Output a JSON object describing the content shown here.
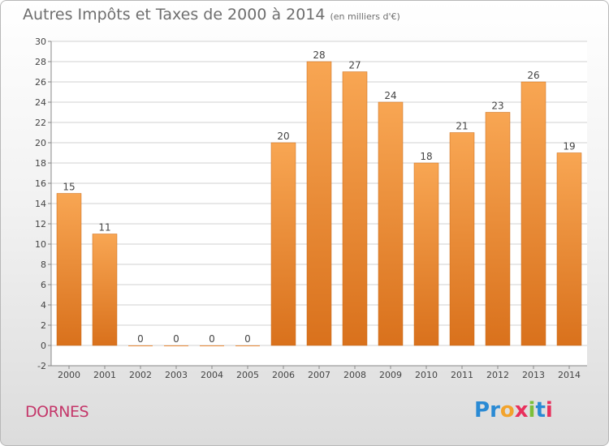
{
  "header": {
    "title": "Autres Impôts et Taxes de 2000 à 2014",
    "subtitle": "(en milliers d'€)"
  },
  "footer": {
    "place": "DORNES",
    "logo": [
      "P",
      "r",
      "o",
      "x",
      "i",
      "t",
      "i"
    ]
  },
  "colors": {
    "bar": "#f0923a",
    "place_text": "#c4376a",
    "logo": [
      "#2a8ad4",
      "#2a8ad4",
      "#f2a32c",
      "#e8305c",
      "#7bbf3a",
      "#2a8ad4",
      "#e8305c"
    ]
  },
  "chart_data": {
    "type": "bar",
    "title": "Autres Impôts et Taxes de 2000 à 2014",
    "subtitle": "(en milliers d'€)",
    "categories": [
      "2000",
      "2001",
      "2002",
      "2003",
      "2004",
      "2005",
      "2006",
      "2007",
      "2008",
      "2009",
      "2010",
      "2011",
      "2012",
      "2013",
      "2014"
    ],
    "values": [
      15,
      11,
      0,
      0,
      0,
      0,
      20,
      28,
      27,
      24,
      18,
      21,
      23,
      26,
      19
    ],
    "ylim": [
      -2,
      30
    ],
    "yticks": [
      -2,
      0,
      2,
      4,
      6,
      8,
      10,
      12,
      14,
      16,
      18,
      20,
      22,
      24,
      26,
      28,
      30
    ],
    "grid": true
  }
}
